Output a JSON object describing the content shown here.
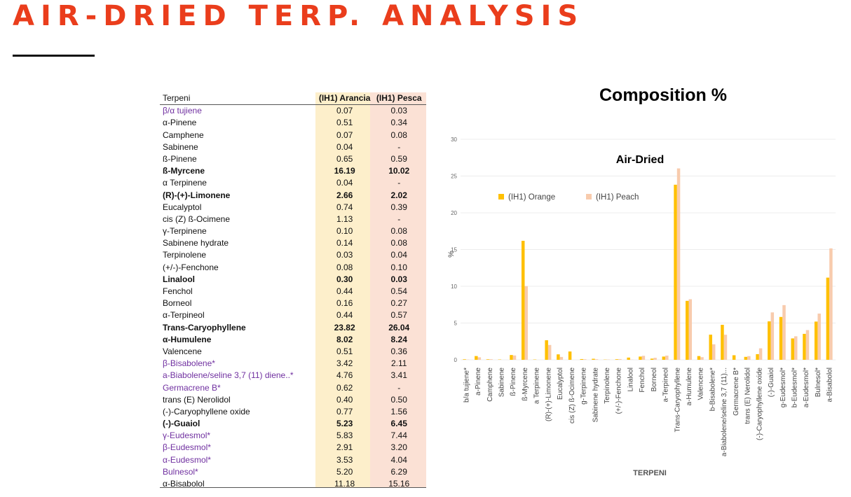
{
  "page_title": "AIR-DRIED TERP. ANALYSIS",
  "table": {
    "headers": [
      "Terpeni",
      "(IH1) Arancia",
      "(IH1) Pesca"
    ],
    "rows": [
      {
        "name": "β/α tujiene",
        "arancia": "0.07",
        "pesca": "0.03",
        "style": "purple"
      },
      {
        "name": "α-Pinene",
        "arancia": "0.51",
        "pesca": "0.34",
        "style": ""
      },
      {
        "name": "Camphene",
        "arancia": "0.07",
        "pesca": "0.08",
        "style": ""
      },
      {
        "name": "Sabinene",
        "arancia": "0.04",
        "pesca": "-",
        "style": ""
      },
      {
        "name": "ß-Pinene",
        "arancia": "0.65",
        "pesca": "0.59",
        "style": ""
      },
      {
        "name": "ß-Myrcene",
        "arancia": "16.19",
        "pesca": "10.02",
        "style": "bold"
      },
      {
        "name": "α Terpinene",
        "arancia": "0.04",
        "pesca": "-",
        "style": ""
      },
      {
        "name": "(R)-(+)-Limonene",
        "arancia": "2.66",
        "pesca": "2.02",
        "style": "bold"
      },
      {
        "name": "Eucalyptol",
        "arancia": "0.74",
        "pesca": "0.39",
        "style": ""
      },
      {
        "name": "cis (Z) ß-Ocimene",
        "arancia": "1.13",
        "pesca": "-",
        "style": ""
      },
      {
        "name": "γ-Terpinene",
        "arancia": "0.10",
        "pesca": "0.08",
        "style": ""
      },
      {
        "name": "Sabinene hydrate",
        "arancia": "0.14",
        "pesca": "0.08",
        "style": ""
      },
      {
        "name": "Terpinolene",
        "arancia": "0.03",
        "pesca": "0.04",
        "style": ""
      },
      {
        "name": "(+/-)-Fenchone",
        "arancia": "0.08",
        "pesca": "0.10",
        "style": ""
      },
      {
        "name": "Linalool",
        "arancia": "0.30",
        "pesca": "0.03",
        "style": "bold"
      },
      {
        "name": "Fenchol",
        "arancia": "0.44",
        "pesca": "0.54",
        "style": ""
      },
      {
        "name": "Borneol",
        "arancia": "0.16",
        "pesca": "0.27",
        "style": ""
      },
      {
        "name": "α-Terpineol",
        "arancia": "0.44",
        "pesca": "0.57",
        "style": ""
      },
      {
        "name": "Trans-Caryophyllene",
        "arancia": "23.82",
        "pesca": "26.04",
        "style": "bold"
      },
      {
        "name": "α-Humulene",
        "arancia": "8.02",
        "pesca": "8.24",
        "style": "bold"
      },
      {
        "name": "Valencene",
        "arancia": "0.51",
        "pesca": "0.36",
        "style": ""
      },
      {
        "name": "β-Bisabolene*",
        "arancia": "3.42",
        "pesca": "2.11",
        "style": "purple"
      },
      {
        "name": "a-Biabolene/seline 3,7 (11) diene..*",
        "arancia": "4.76",
        "pesca": "3.41",
        "style": "purple"
      },
      {
        "name": "Germacrene B*",
        "arancia": "0.62",
        "pesca": "-",
        "style": "purple"
      },
      {
        "name": "trans (E) Nerolidol",
        "arancia": "0.40",
        "pesca": "0.50",
        "style": ""
      },
      {
        "name": "(-)-Caryophyllene oxide",
        "arancia": "0.77",
        "pesca": "1.56",
        "style": ""
      },
      {
        "name": "(-)-Guaiol",
        "arancia": "5.23",
        "pesca": "6.45",
        "style": "bold"
      },
      {
        "name": "γ-Eudesmol*",
        "arancia": "5.83",
        "pesca": "7.44",
        "style": "purple"
      },
      {
        "name": "β-Eudesmol*",
        "arancia": "2.91",
        "pesca": "3.20",
        "style": "purple"
      },
      {
        "name": "α-Eudesmol*",
        "arancia": "3.53",
        "pesca": "4.04",
        "style": "purple"
      },
      {
        "name": "Bulnesol*",
        "arancia": "5.20",
        "pesca": "6.29",
        "style": "purple"
      },
      {
        "name": "α-Bisabolol",
        "arancia": "11.18",
        "pesca": "15.16",
        "style": ""
      }
    ]
  },
  "colors": {
    "title": "#ea3d1c",
    "orange": "#ffc000",
    "peach": "#f8cbad",
    "purple": "#7030a0",
    "arancia_bg": "#fdefcb",
    "pesca_bg": "#fbe1d5"
  },
  "chart_data": {
    "type": "bar",
    "heading": "Composition %",
    "title": "Air-Dried",
    "xlabel": "TERPENI",
    "ylabel": "%",
    "ylim": [
      0,
      30
    ],
    "yticks": [
      0,
      5,
      10,
      15,
      20,
      25,
      30
    ],
    "grid": true,
    "legend_placement": "top-left",
    "categories": [
      "b/a tujiene*",
      "a-Pinene",
      "Camphene",
      "Sabinene",
      "ß-Pinene",
      "ß-Myrcene",
      "a Terpinene",
      "(R)-(+)-Limonene",
      "Eucalyptol",
      "cis (Z) ß-Ocimene",
      "g-Terpinene",
      "Sabinene hydrate",
      "Terpinolene",
      "(+/-)-Fenchone",
      "Linalool",
      "Fenchol",
      "Borneol",
      "a-Terpineol",
      "Trans-Caryophyllene",
      "a-Humulene",
      "Valencene",
      "b-Bisabolene*",
      "a-Biabolene/seline 3,7 (11)...",
      "Germacrene B*",
      "trans (E) Nerolidol",
      "(-)-Caryophyllene oxide",
      "(-)-Guaiol",
      "g-Eudesmol*",
      "b-Eudesmol*",
      "a-Eudesmol*",
      "Bulnesol*",
      "a-Bisabolol"
    ],
    "series": [
      {
        "name": "(IH1) Orange",
        "values": [
          0.07,
          0.51,
          0.07,
          0.04,
          0.65,
          16.19,
          0.04,
          2.66,
          0.74,
          1.13,
          0.1,
          0.14,
          0.03,
          0.08,
          0.3,
          0.44,
          0.16,
          0.44,
          23.82,
          8.02,
          0.51,
          3.42,
          4.76,
          0.62,
          0.4,
          0.77,
          5.23,
          5.83,
          2.91,
          3.53,
          5.2,
          11.18
        ]
      },
      {
        "name": "(IH1) Peach",
        "values": [
          0.03,
          0.34,
          0.08,
          0,
          0.59,
          10.02,
          0,
          2.02,
          0.39,
          0,
          0.08,
          0.08,
          0.04,
          0.1,
          0.03,
          0.54,
          0.27,
          0.57,
          26.04,
          8.24,
          0.36,
          2.11,
          3.41,
          0,
          0.5,
          1.56,
          6.45,
          7.44,
          3.2,
          4.04,
          6.29,
          15.16
        ]
      }
    ]
  }
}
